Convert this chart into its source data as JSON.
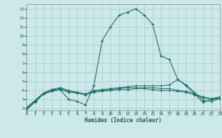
{
  "xlabel": "Humidex (Indice chaleur)",
  "xlim": [
    0,
    23
  ],
  "ylim": [
    1.8,
    13.5
  ],
  "xticks": [
    0,
    1,
    2,
    3,
    4,
    5,
    6,
    7,
    8,
    9,
    10,
    11,
    12,
    13,
    14,
    15,
    16,
    17,
    18,
    19,
    20,
    21,
    22,
    23
  ],
  "yticks": [
    2,
    3,
    4,
    5,
    6,
    7,
    8,
    9,
    10,
    11,
    12,
    13
  ],
  "bg_color": "#cce8e8",
  "grid_color": "#aacfcf",
  "line_color": "#1a6b6b",
  "line1_x": [
    0,
    1,
    2,
    3,
    4,
    5,
    6,
    7,
    8,
    9,
    10,
    11,
    12,
    13,
    14,
    15,
    16,
    17,
    18,
    19,
    20,
    21,
    22,
    23
  ],
  "line1_y": [
    1.9,
    2.7,
    3.6,
    3.9,
    4.1,
    3.0,
    2.8,
    2.4,
    4.5,
    9.5,
    11.0,
    12.3,
    12.6,
    13.0,
    12.3,
    11.3,
    7.8,
    7.4,
    5.2,
    4.5,
    3.6,
    2.7,
    3.0,
    3.1
  ],
  "line2_x": [
    0,
    1,
    2,
    3,
    4,
    5,
    6,
    7,
    8,
    9,
    10,
    11,
    12,
    13,
    14,
    15,
    16,
    17,
    18,
    19,
    20,
    21,
    22,
    23
  ],
  "line2_y": [
    2.1,
    2.9,
    3.7,
    4.1,
    4.3,
    4.0,
    3.8,
    3.6,
    4.0,
    4.1,
    4.2,
    4.3,
    4.4,
    4.5,
    4.5,
    4.5,
    4.5,
    4.6,
    5.2,
    4.6,
    3.8,
    2.9,
    2.8,
    3.1
  ],
  "line3_x": [
    0,
    1,
    2,
    3,
    4,
    5,
    6,
    7,
    8,
    9,
    10,
    11,
    12,
    13,
    14,
    15,
    16,
    17,
    18,
    19,
    20,
    21,
    22,
    23
  ],
  "line3_y": [
    2.1,
    2.9,
    3.7,
    4.1,
    4.2,
    3.9,
    3.8,
    3.6,
    3.9,
    4.0,
    4.1,
    4.2,
    4.3,
    4.3,
    4.3,
    4.3,
    4.2,
    4.2,
    4.0,
    3.9,
    3.6,
    3.3,
    3.1,
    3.3
  ],
  "line4_x": [
    0,
    1,
    2,
    3,
    4,
    5,
    6,
    7,
    8,
    9,
    10,
    11,
    12,
    13,
    14,
    15,
    16,
    17,
    18,
    19,
    20,
    21,
    22,
    23
  ],
  "line4_y": [
    2.0,
    2.8,
    3.6,
    4.0,
    4.1,
    3.8,
    3.7,
    3.5,
    3.8,
    3.9,
    4.0,
    4.1,
    4.1,
    4.2,
    4.2,
    4.1,
    4.0,
    4.0,
    3.9,
    3.8,
    3.5,
    3.2,
    3.0,
    3.2
  ]
}
